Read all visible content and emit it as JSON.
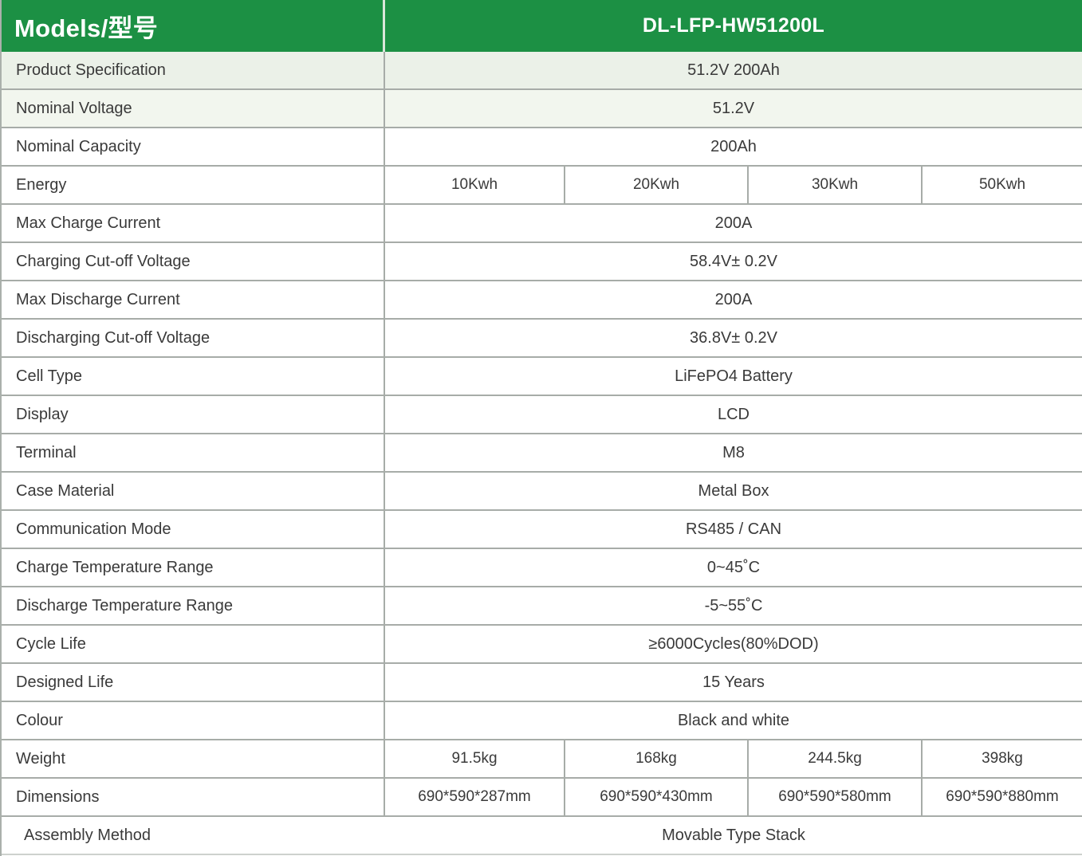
{
  "header": {
    "models_label": "Models/型号",
    "model_name": "DL-LFP-HW51200L"
  },
  "colors": {
    "header_green": "#1c9044",
    "row_tint_top": "#ebf1e8",
    "row_tint_second": "#f2f6ee",
    "grid_line": "#a7aca8",
    "text": "#3a3a3a"
  },
  "rows": [
    {
      "label": "Product Specification",
      "value": "51.2V 200Ah"
    },
    {
      "label": "Nominal Voltage",
      "value": "51.2V"
    },
    {
      "label": "Nominal Capacity",
      "value": "200Ah"
    },
    {
      "label": "Energy",
      "values": [
        "10Kwh",
        "20Kwh",
        "30Kwh",
        "50Kwh"
      ]
    },
    {
      "label": "Max Charge Current",
      "value": "200A"
    },
    {
      "label": "Charging Cut-off Voltage",
      "value": "58.4V± 0.2V"
    },
    {
      "label": "Max Discharge Current",
      "value": "200A"
    },
    {
      "label": "Discharging Cut-off Voltage",
      "value": "36.8V± 0.2V"
    },
    {
      "label": "Cell Type",
      "value": "LiFePO4 Battery"
    },
    {
      "label": "Display",
      "value": "LCD"
    },
    {
      "label": "Terminal",
      "value": "M8"
    },
    {
      "label": "Case Material",
      "value": "Metal Box"
    },
    {
      "label": "Communication Mode",
      "value": "RS485 / CAN"
    },
    {
      "label": "Charge Temperature Range",
      "value": "0~45˚C"
    },
    {
      "label": "Discharge Temperature Range",
      "value": "-5~55˚C"
    },
    {
      "label": "Cycle Life",
      "value": "≥6000Cycles(80%DOD)"
    },
    {
      "label": "Designed Life",
      "value": "15 Years"
    },
    {
      "label": "Colour",
      "value": "Black and white"
    },
    {
      "label": "Weight",
      "values": [
        "91.5kg",
        "168kg",
        "244.5kg",
        "398kg"
      ]
    },
    {
      "label": "Dimensions",
      "values": [
        "690*590*287mm",
        "690*590*430mm",
        "690*590*580mm",
        "690*590*880mm"
      ]
    },
    {
      "label": "Assembly Method",
      "value": "Movable Type Stack"
    }
  ]
}
